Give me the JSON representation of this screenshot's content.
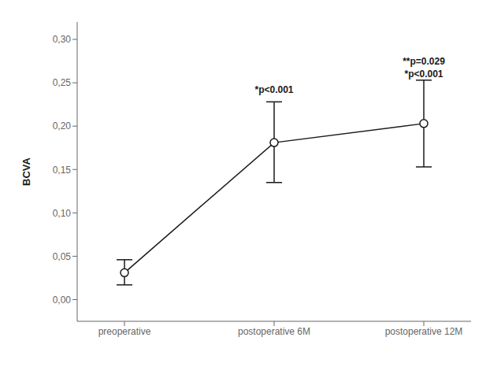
{
  "chart_data": {
    "type": "line",
    "categories": [
      "preoperative",
      "postoperative 6M",
      "postoperative 12M"
    ],
    "values": [
      0.031,
      0.181,
      0.203
    ],
    "lower": [
      0.017,
      0.135,
      0.153
    ],
    "upper": [
      0.046,
      0.228,
      0.253
    ],
    "ylabel": "BCVA",
    "ylim": [
      -0.025,
      0.32
    ],
    "yticks": [
      {
        "value": 0.0,
        "label": "0,00"
      },
      {
        "value": 0.05,
        "label": "0,05"
      },
      {
        "value": 0.1,
        "label": "0,10"
      },
      {
        "value": 0.15,
        "label": "0,15"
      },
      {
        "value": 0.2,
        "label": "0,20"
      },
      {
        "value": 0.25,
        "label": "0,25"
      },
      {
        "value": 0.3,
        "label": "0,30"
      }
    ],
    "annotations": [
      {
        "x": "postoperative 6M",
        "y": 0.234,
        "text": "*p<0.001"
      },
      {
        "x": "postoperative 12M",
        "y": 0.266,
        "text": "**p=0.029"
      },
      {
        "x": "postoperative 12M",
        "y": 0.252,
        "text": "*p<0.001"
      }
    ],
    "color": "#1a1a1a",
    "marker": "circle",
    "grid": false
  }
}
